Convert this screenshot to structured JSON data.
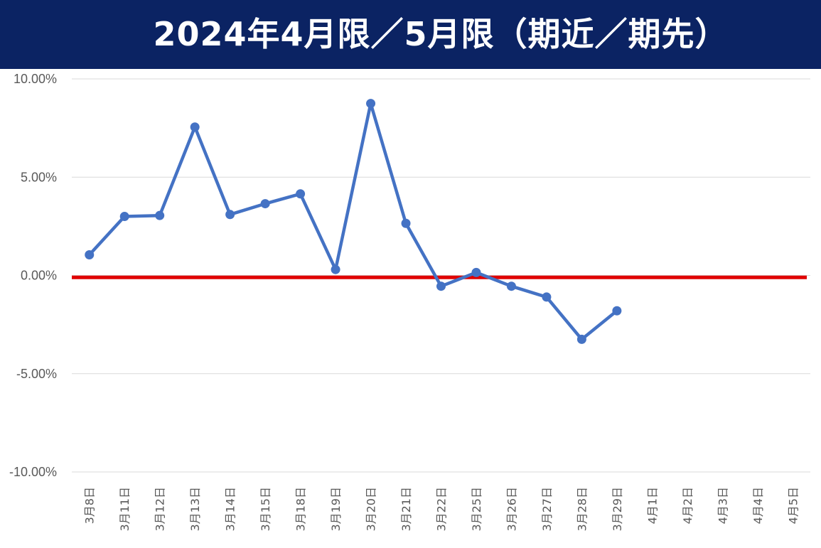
{
  "title": "2024年4月限／5月限（期近／期先）",
  "colors": {
    "title_bg": "#0b2363",
    "title_text": "#ffffff",
    "series_line": "#4472c4",
    "zero_line": "#e00000",
    "grid": "#d9d9d9",
    "tick_text": "#595959"
  },
  "chart_data": {
    "type": "line",
    "title": "2024年4月限／5月限（期近／期先）",
    "xlabel": "",
    "ylabel": "",
    "ylim": [
      -10,
      10
    ],
    "yticks": [
      10,
      5,
      0,
      -5,
      -10
    ],
    "ytick_labels": [
      "10.00%",
      "5.00%",
      "0.00%",
      "-5.00%",
      "-10.00%"
    ],
    "grid": true,
    "legend": "none",
    "reference_line": {
      "y": -0.1,
      "color": "#e00000"
    },
    "categories": [
      "3月8日",
      "3月11日",
      "3月12日",
      "3月13日",
      "3月14日",
      "3月15日",
      "3月18日",
      "3月19日",
      "3月20日",
      "3月21日",
      "3月22日",
      "3月25日",
      "3月26日",
      "3月27日",
      "3月28日",
      "3月29日",
      "4月1日",
      "4月2日",
      "4月3日",
      "4月4日",
      "4月5日"
    ],
    "series": [
      {
        "values": [
          1.05,
          3.0,
          3.05,
          7.55,
          3.1,
          3.65,
          4.15,
          0.3,
          8.75,
          2.65,
          -0.55,
          0.15,
          -0.55,
          -1.1,
          -3.25,
          -1.8,
          null,
          null,
          null,
          null,
          null
        ]
      }
    ]
  }
}
